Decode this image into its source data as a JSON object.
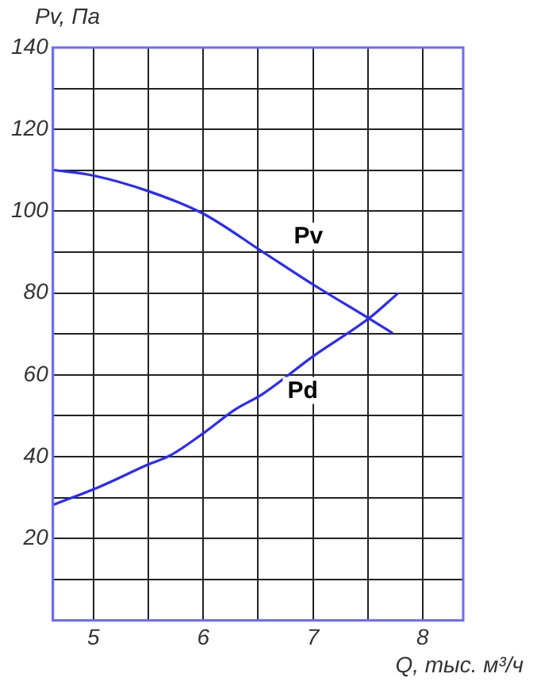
{
  "chart_data": {
    "type": "line",
    "xlabel": "Q, тыс. м³/ч",
    "ylabel": "Pv, Па",
    "xlim": [
      4.63,
      8.37
    ],
    "ylim": [
      0,
      140
    ],
    "xticks": [
      5,
      {
        "value": 5.5,
        "label": null
      },
      6,
      {
        "value": 6.5,
        "label": null
      },
      7,
      {
        "value": 7.5,
        "label": null
      },
      8
    ],
    "yticks": [
      {
        "value": 0,
        "label": null
      },
      {
        "value": 10,
        "label": null
      },
      20,
      {
        "value": 30,
        "label": null
      },
      40,
      {
        "value": 50,
        "label": null
      },
      60,
      {
        "value": 70,
        "label": null
      },
      80,
      {
        "value": 90,
        "label": null
      },
      100,
      {
        "value": 110,
        "label": null
      },
      120,
      {
        "value": 130,
        "label": null
      },
      140
    ],
    "grid": true,
    "legend": false,
    "marker": "none",
    "line_style": "solid",
    "series": [
      {
        "name": "Pv",
        "color": "#2a2aff",
        "x": [
          4.63,
          5.0,
          5.5,
          6.0,
          6.54,
          7.0,
          7.51,
          7.72
        ],
        "values": [
          110.1,
          108.7,
          104.9,
          99.4,
          90.1,
          82.1,
          73.8,
          70.3
        ]
      },
      {
        "name": "Pd",
        "color": "#2a2aff",
        "x": [
          4.63,
          5.06,
          5.5,
          5.7,
          6.0,
          6.29,
          6.54,
          7.0,
          7.51,
          7.77
        ],
        "values": [
          28.2,
          32.7,
          38.1,
          40.3,
          45.7,
          51.5,
          55.3,
          64.5,
          73.8,
          79.8
        ]
      }
    ]
  }
}
